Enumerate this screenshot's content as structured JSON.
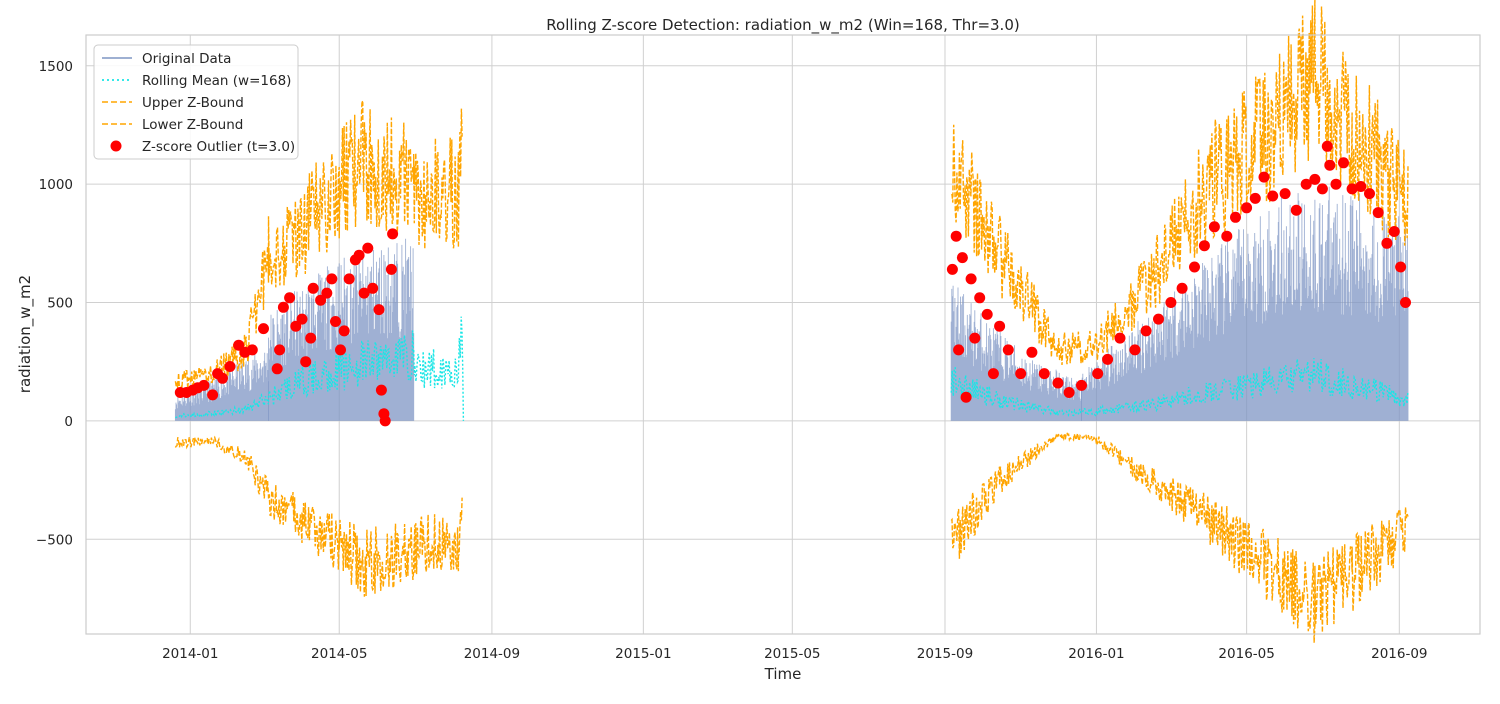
{
  "chart_data": {
    "type": "line",
    "title": "Rolling Z-score Detection: radiation_w_m2 (Win=168, Thr=3.0)",
    "xlabel": "Time",
    "ylabel": "radiation_w_m2",
    "x_ticks": [
      "2014-01",
      "2014-05",
      "2014-09",
      "2015-01",
      "2015-05",
      "2015-09",
      "2016-01",
      "2016-05",
      "2016-09"
    ],
    "y_ticks": [
      -500,
      0,
      500,
      1000,
      1500
    ],
    "xlim": [
      "2013-10-09",
      "2016-11-05"
    ],
    "ylim": [
      -900,
      1630
    ],
    "grid": true,
    "legend_position": "top-left",
    "colors": {
      "original": "#8fa6cc",
      "original_line": "#7f96c4",
      "rolling_mean": "#19e6e6",
      "upper": "#ffa500",
      "lower": "#ffa500",
      "outlier": "#ff0000",
      "grid": "#d0d0d0"
    },
    "series": [
      {
        "name": "Original Data",
        "style": "solid",
        "segments": [
          {
            "start": "2013-12-20",
            "end": "2014-03-05",
            "envelope": [
              [
                0,
                110
              ],
              [
                0.3,
                160
              ],
              [
                0.6,
                230
              ],
              [
                1.0,
                330
              ]
            ]
          },
          {
            "start": "2014-03-05",
            "end": "2014-06-30",
            "envelope": [
              [
                0,
                460
              ],
              [
                0.2,
                560
              ],
              [
                0.5,
                700
              ],
              [
                0.8,
                760
              ],
              [
                1.0,
                780
              ]
            ]
          },
          {
            "start": "2015-09-06",
            "end": "2015-12-20",
            "envelope": [
              [
                0,
                600
              ],
              [
                0.3,
                420
              ],
              [
                0.6,
                270
              ],
              [
                1.0,
                170
              ]
            ]
          },
          {
            "start": "2015-12-20",
            "end": "2016-09-08",
            "envelope": [
              [
                0,
                200
              ],
              [
                0.3,
                600
              ],
              [
                0.6,
                950
              ],
              [
                0.8,
                1000
              ],
              [
                1.0,
                850
              ]
            ]
          }
        ]
      },
      {
        "name": "Rolling Mean (w=168)",
        "style": "dotted",
        "points": [
          [
            "2013-12-20",
            20
          ],
          [
            "2014-01-20",
            30
          ],
          [
            "2014-02-15",
            50
          ],
          [
            "2014-03-05",
            95
          ],
          [
            "2014-03-20",
            140
          ],
          [
            "2014-04-10",
            180
          ],
          [
            "2014-05-01",
            210
          ],
          [
            "2014-05-20",
            240
          ],
          [
            "2014-06-10",
            270
          ],
          [
            "2014-06-30",
            280
          ],
          [
            "2014-07-01",
            220
          ],
          [
            "2014-08-05",
            220
          ],
          [
            "2014-08-08",
            360
          ],
          [
            "2014-08-09",
            0
          ],
          [
            "2015-09-06",
            170
          ],
          [
            "2015-10-15",
            90
          ],
          [
            "2015-12-01",
            35
          ],
          [
            "2016-01-01",
            40
          ],
          [
            "2016-02-15",
            70
          ],
          [
            "2016-04-01",
            120
          ],
          [
            "2016-05-15",
            160
          ],
          [
            "2016-06-25",
            200
          ],
          [
            "2016-07-25",
            150
          ],
          [
            "2016-09-08",
            90
          ]
        ]
      },
      {
        "name": "Upper Z-Bound",
        "style": "dashed",
        "points": [
          [
            "2013-12-20",
            160
          ],
          [
            "2014-01-20",
            200
          ],
          [
            "2014-02-15",
            300
          ],
          [
            "2014-03-05",
            700
          ],
          [
            "2014-04-01",
            800
          ],
          [
            "2014-05-01",
            1000
          ],
          [
            "2014-05-20",
            1100
          ],
          [
            "2014-06-10",
            1050
          ],
          [
            "2014-06-30",
            1000
          ],
          [
            "2014-07-01",
            960
          ],
          [
            "2014-08-05",
            960
          ],
          [
            "2014-08-08",
            1100
          ],
          [
            "2015-09-06",
            1080
          ],
          [
            "2015-10-15",
            700
          ],
          [
            "2015-12-01",
            300
          ],
          [
            "2016-01-01",
            320
          ],
          [
            "2016-02-15",
            600
          ],
          [
            "2016-04-01",
            1000
          ],
          [
            "2016-05-15",
            1200
          ],
          [
            "2016-06-25",
            1450
          ],
          [
            "2016-07-25",
            1250
          ],
          [
            "2016-09-08",
            900
          ]
        ]
      },
      {
        "name": "Lower Z-Bound",
        "style": "dashed",
        "points": [
          [
            "2013-12-20",
            -90
          ],
          [
            "2014-01-20",
            -90
          ],
          [
            "2014-02-15",
            -150
          ],
          [
            "2014-03-05",
            -330
          ],
          [
            "2014-04-01",
            -420
          ],
          [
            "2014-05-01",
            -520
          ],
          [
            "2014-05-20",
            -600
          ],
          [
            "2014-06-10",
            -580
          ],
          [
            "2014-06-30",
            -540
          ],
          [
            "2014-07-01",
            -520
          ],
          [
            "2014-08-05",
            -520
          ],
          [
            "2014-08-08",
            -380
          ],
          [
            "2015-09-06",
            -520
          ],
          [
            "2015-10-15",
            -250
          ],
          [
            "2015-12-01",
            -60
          ],
          [
            "2016-01-01",
            -80
          ],
          [
            "2016-02-15",
            -250
          ],
          [
            "2016-04-01",
            -420
          ],
          [
            "2016-05-15",
            -600
          ],
          [
            "2016-06-25",
            -760
          ],
          [
            "2016-07-25",
            -650
          ],
          [
            "2016-09-08",
            -450
          ]
        ]
      },
      {
        "name": "Z-score Outlier (t=3.0)",
        "style": "scatter",
        "points": [
          [
            "2013-12-24",
            120
          ],
          [
            "2013-12-29",
            120
          ],
          [
            "2014-01-03",
            130
          ],
          [
            "2014-01-07",
            140
          ],
          [
            "2014-01-12",
            150
          ],
          [
            "2014-01-19",
            110
          ],
          [
            "2014-01-23",
            200
          ],
          [
            "2014-01-27",
            180
          ],
          [
            "2014-02-02",
            230
          ],
          [
            "2014-02-09",
            320
          ],
          [
            "2014-02-14",
            290
          ],
          [
            "2014-02-20",
            300
          ],
          [
            "2014-03-01",
            390
          ],
          [
            "2014-03-12",
            220
          ],
          [
            "2014-03-14",
            300
          ],
          [
            "2014-03-17",
            480
          ],
          [
            "2014-03-22",
            520
          ],
          [
            "2014-03-27",
            400
          ],
          [
            "2014-04-01",
            430
          ],
          [
            "2014-04-04",
            250
          ],
          [
            "2014-04-08",
            350
          ],
          [
            "2014-04-10",
            560
          ],
          [
            "2014-04-16",
            510
          ],
          [
            "2014-04-21",
            540
          ],
          [
            "2014-04-25",
            600
          ],
          [
            "2014-04-28",
            420
          ],
          [
            "2014-05-02",
            300
          ],
          [
            "2014-05-05",
            380
          ],
          [
            "2014-05-09",
            600
          ],
          [
            "2014-05-14",
            680
          ],
          [
            "2014-05-17",
            700
          ],
          [
            "2014-05-21",
            540
          ],
          [
            "2014-05-24",
            730
          ],
          [
            "2014-05-28",
            560
          ],
          [
            "2014-06-02",
            470
          ],
          [
            "2014-06-04",
            130
          ],
          [
            "2014-06-06",
            30
          ],
          [
            "2014-06-07",
            0
          ],
          [
            "2014-06-12",
            640
          ],
          [
            "2014-06-13",
            790
          ],
          [
            "2015-09-07",
            640
          ],
          [
            "2015-09-10",
            780
          ],
          [
            "2015-09-12",
            300
          ],
          [
            "2015-09-15",
            690
          ],
          [
            "2015-09-18",
            100
          ],
          [
            "2015-09-22",
            600
          ],
          [
            "2015-09-25",
            350
          ],
          [
            "2015-09-29",
            520
          ],
          [
            "2015-10-05",
            450
          ],
          [
            "2015-10-10",
            200
          ],
          [
            "2015-10-15",
            400
          ],
          [
            "2015-10-22",
            300
          ],
          [
            "2015-11-01",
            200
          ],
          [
            "2015-11-10",
            290
          ],
          [
            "2015-11-20",
            200
          ],
          [
            "2015-12-01",
            160
          ],
          [
            "2015-12-10",
            120
          ],
          [
            "2015-12-20",
            150
          ],
          [
            "2016-01-02",
            200
          ],
          [
            "2016-01-10",
            260
          ],
          [
            "2016-01-20",
            350
          ],
          [
            "2016-02-01",
            300
          ],
          [
            "2016-02-10",
            380
          ],
          [
            "2016-02-20",
            430
          ],
          [
            "2016-03-01",
            500
          ],
          [
            "2016-03-10",
            560
          ],
          [
            "2016-03-20",
            650
          ],
          [
            "2016-03-28",
            740
          ],
          [
            "2016-04-05",
            820
          ],
          [
            "2016-04-15",
            780
          ],
          [
            "2016-04-22",
            860
          ],
          [
            "2016-05-01",
            900
          ],
          [
            "2016-05-08",
            940
          ],
          [
            "2016-05-15",
            1030
          ],
          [
            "2016-05-22",
            950
          ],
          [
            "2016-06-01",
            960
          ],
          [
            "2016-06-10",
            890
          ],
          [
            "2016-06-18",
            1000
          ],
          [
            "2016-06-25",
            1020
          ],
          [
            "2016-07-01",
            980
          ],
          [
            "2016-07-05",
            1160
          ],
          [
            "2016-07-07",
            1080
          ],
          [
            "2016-07-12",
            1000
          ],
          [
            "2016-07-18",
            1090
          ],
          [
            "2016-07-25",
            980
          ],
          [
            "2016-08-01",
            990
          ],
          [
            "2016-08-08",
            960
          ],
          [
            "2016-08-15",
            880
          ],
          [
            "2016-08-22",
            750
          ],
          [
            "2016-08-28",
            800
          ],
          [
            "2016-09-02",
            650
          ],
          [
            "2016-09-06",
            500
          ]
        ]
      }
    ]
  }
}
